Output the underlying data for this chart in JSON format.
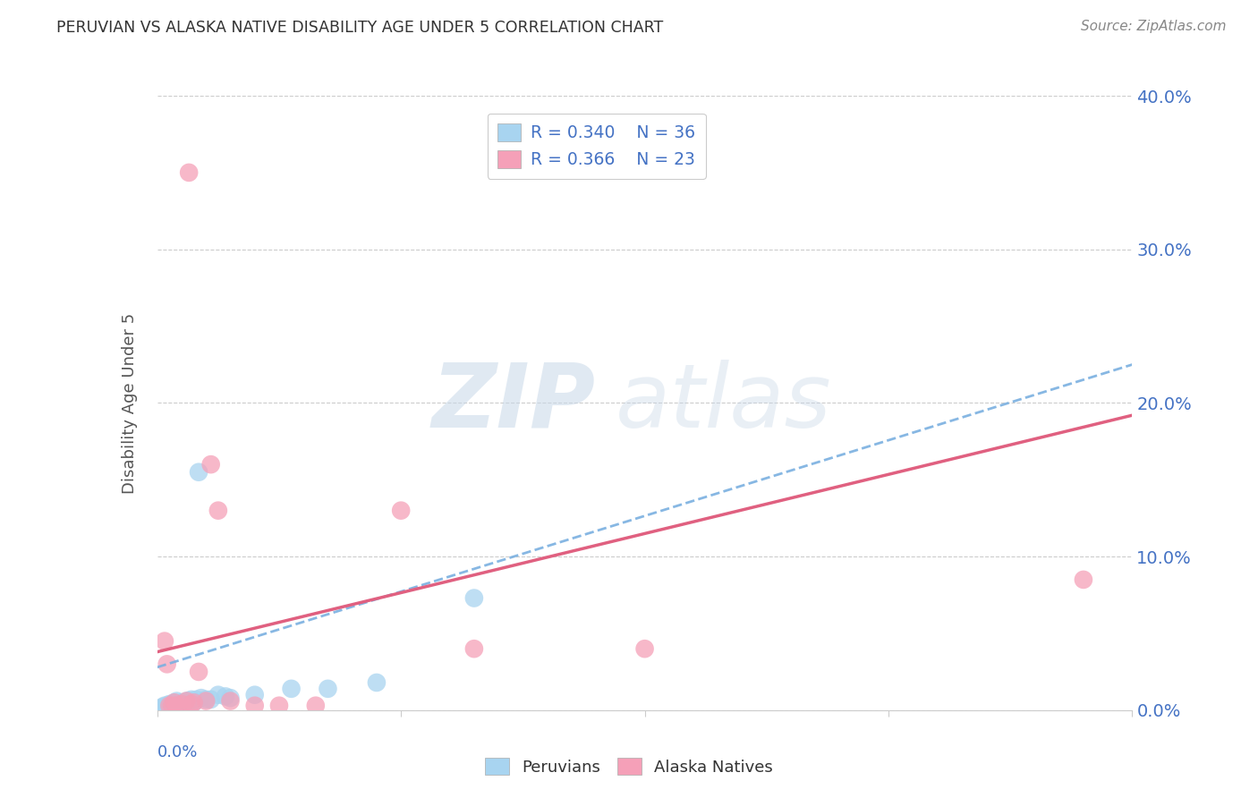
{
  "title": "PERUVIAN VS ALASKA NATIVE DISABILITY AGE UNDER 5 CORRELATION CHART",
  "source": "Source: ZipAtlas.com",
  "ylabel": "Disability Age Under 5",
  "legend_r_peru": "R = 0.340",
  "legend_n_peru": "N = 36",
  "legend_r_alaska": "R = 0.366",
  "legend_n_alaska": "N = 23",
  "color_peru": "#a8d4f0",
  "color_alaska": "#f5a0b8",
  "line_color_peru_dashed": "#7ab0e0",
  "line_color_alaska_solid": "#e06080",
  "xlim": [
    0.0,
    0.4
  ],
  "ylim": [
    0.0,
    0.4
  ],
  "ytick_vals": [
    0.0,
    0.1,
    0.2,
    0.3,
    0.4
  ],
  "ylabel_ticks": [
    "0.0%",
    "10.0%",
    "20.0%",
    "30.0%",
    "40.0%"
  ],
  "xtick_vals": [
    0.0,
    0.1,
    0.2,
    0.3,
    0.4
  ],
  "peruvian_x": [
    0.001,
    0.002,
    0.002,
    0.003,
    0.003,
    0.004,
    0.004,
    0.005,
    0.005,
    0.006,
    0.006,
    0.007,
    0.007,
    0.008,
    0.008,
    0.009,
    0.01,
    0.01,
    0.011,
    0.012,
    0.013,
    0.014,
    0.015,
    0.016,
    0.017,
    0.018,
    0.02,
    0.022,
    0.025,
    0.028,
    0.03,
    0.04,
    0.055,
    0.07,
    0.09,
    0.13
  ],
  "peruvian_y": [
    0.001,
    0.001,
    0.002,
    0.002,
    0.003,
    0.002,
    0.003,
    0.003,
    0.004,
    0.003,
    0.004,
    0.003,
    0.005,
    0.004,
    0.006,
    0.004,
    0.003,
    0.005,
    0.005,
    0.006,
    0.006,
    0.007,
    0.005,
    0.007,
    0.155,
    0.008,
    0.007,
    0.007,
    0.01,
    0.009,
    0.008,
    0.01,
    0.014,
    0.014,
    0.018,
    0.073
  ],
  "alaska_x": [
    0.003,
    0.004,
    0.005,
    0.006,
    0.007,
    0.008,
    0.01,
    0.012,
    0.013,
    0.014,
    0.015,
    0.017,
    0.02,
    0.022,
    0.025,
    0.03,
    0.04,
    0.05,
    0.065,
    0.1,
    0.13,
    0.2,
    0.38
  ],
  "alaska_y": [
    0.045,
    0.03,
    0.003,
    0.003,
    0.005,
    0.003,
    0.004,
    0.006,
    0.35,
    0.004,
    0.005,
    0.025,
    0.006,
    0.16,
    0.13,
    0.006,
    0.003,
    0.003,
    0.003,
    0.13,
    0.04,
    0.04,
    0.085
  ],
  "peru_line_x": [
    0.0,
    0.4
  ],
  "peru_line_y": [
    0.028,
    0.225
  ],
  "alaska_line_x": [
    0.0,
    0.4
  ],
  "alaska_line_y": [
    0.038,
    0.192
  ],
  "watermark_zip": "ZIP",
  "watermark_atlas": "atlas",
  "bg_color": "#ffffff",
  "grid_color": "#cccccc",
  "spine_color": "#cccccc",
  "title_color": "#333333",
  "source_color": "#888888",
  "tick_label_color": "#4472C4",
  "legend_label_color": "#4472C4"
}
